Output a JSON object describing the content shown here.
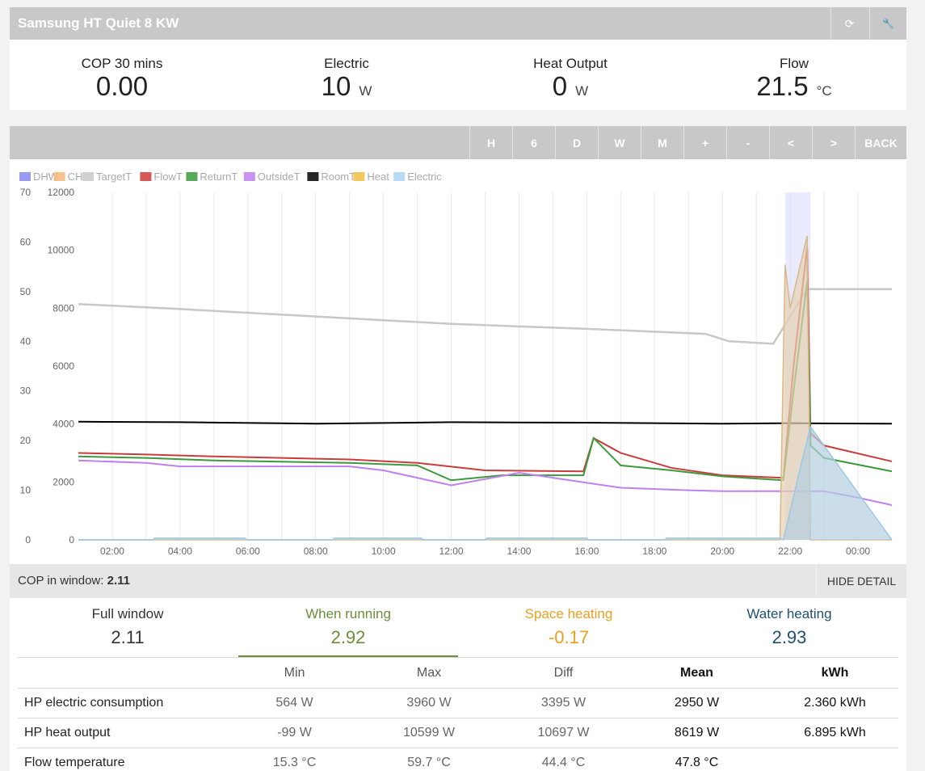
{
  "panel": {
    "title": "Samsung HT Quiet 8 KW",
    "buttons": [
      {
        "icon": "refresh-icon",
        "glyph": "⟳"
      },
      {
        "icon": "wrench-icon",
        "glyph": "🔧"
      }
    ]
  },
  "stats": [
    {
      "label": "COP 30 mins",
      "value": "0.00",
      "unit": ""
    },
    {
      "label": "Electric",
      "value": "10",
      "unit": "W"
    },
    {
      "label": "Heat Output",
      "value": "0",
      "unit": "W"
    },
    {
      "label": "Flow",
      "value": "21.5",
      "unit": "°C"
    }
  ],
  "toolbar": [
    "H",
    "6",
    "D",
    "W",
    "M",
    "+",
    "-",
    "<",
    ">",
    "BACK"
  ],
  "chart_data": {
    "type": "line",
    "legend": [
      {
        "name": "DHW",
        "color": "#8888ee"
      },
      {
        "name": "CH",
        "color": "#f5b97a"
      },
      {
        "name": "TargetT",
        "color": "#c8c8c8"
      },
      {
        "name": "FlowT",
        "color": "#cc3b3b"
      },
      {
        "name": "ReturnT",
        "color": "#3c9a3c"
      },
      {
        "name": "OutsideT",
        "color": "#c080f0"
      },
      {
        "name": "RoomT",
        "color": "#000000"
      },
      {
        "name": "Heat",
        "color": "#f0c040"
      },
      {
        "name": "Electric",
        "color": "#a8d4f0"
      }
    ],
    "y_left_ticks": [
      "70",
      "60",
      "50",
      "40",
      "30",
      "20",
      "10",
      "0"
    ],
    "y_right_ticks": [
      "12000",
      "10000",
      "8000",
      "6000",
      "4000",
      "2000",
      "0"
    ],
    "x_ticks": [
      "02:00",
      "04:00",
      "06:00",
      "08:00",
      "10:00",
      "12:00",
      "14:00",
      "16:00",
      "18:00",
      "20:00",
      "22:00",
      "00:00"
    ],
    "ylim_left": [
      0,
      70
    ],
    "ylim_right": [
      0,
      12000
    ],
    "series": [
      {
        "name": "TargetT",
        "axis": "left",
        "x": [
          1.0,
          4.0,
          8.0,
          12.0,
          16.0,
          19.5,
          20.2,
          21.5,
          22.5,
          23.0,
          25.0
        ],
        "values": [
          47.5,
          46.5,
          45.0,
          43.5,
          42.5,
          41.5,
          40.0,
          39.5,
          50.5,
          50.5,
          50.5
        ]
      },
      {
        "name": "RoomT",
        "axis": "left",
        "x": [
          1.0,
          4.0,
          8.0,
          12.0,
          16.0,
          20.0,
          22.0,
          25.0
        ],
        "values": [
          23.8,
          23.7,
          23.4,
          23.7,
          23.6,
          23.4,
          23.5,
          23.4
        ]
      },
      {
        "name": "FlowT",
        "axis": "left",
        "x": [
          1.0,
          3.0,
          5.0,
          9.0,
          11.0,
          13.0,
          15.9,
          16.2,
          17.0,
          18.5,
          20.0,
          21.8,
          22.1,
          22.5,
          22.6,
          23.0,
          25.0
        ],
        "values": [
          17.5,
          17.2,
          16.8,
          16.2,
          15.5,
          14.0,
          13.8,
          20.5,
          17.5,
          14.5,
          13.0,
          12.5,
          35.0,
          59.0,
          21.5,
          19.0,
          15.8
        ]
      },
      {
        "name": "ReturnT",
        "axis": "left",
        "x": [
          1.0,
          3.0,
          5.0,
          9.0,
          11.0,
          12.0,
          13.5,
          15.9,
          16.2,
          17.0,
          18.5,
          20.0,
          21.8,
          22.1,
          22.5,
          22.6,
          23.0,
          25.0
        ],
        "values": [
          16.8,
          16.5,
          16.0,
          15.5,
          15.0,
          12.0,
          13.0,
          13.0,
          20.5,
          15.0,
          14.0,
          12.8,
          12.0,
          30.0,
          52.0,
          19.0,
          16.5,
          13.8
        ]
      },
      {
        "name": "OutsideT",
        "axis": "left",
        "x": [
          1.0,
          3.0,
          4.0,
          9.0,
          10.0,
          12.0,
          14.0,
          15.5,
          17.0,
          19.0,
          20.0,
          22.0,
          23.0,
          24.0,
          25.0
        ],
        "values": [
          16.0,
          15.5,
          14.8,
          14.8,
          14.0,
          11.0,
          13.5,
          12.0,
          10.5,
          10.0,
          9.8,
          9.8,
          9.8,
          8.5,
          7.0
        ]
      },
      {
        "name": "Heat",
        "axis": "right",
        "x": [
          1.0,
          21.7,
          21.85,
          22.0,
          22.3,
          22.5,
          22.6,
          25.0
        ],
        "values": [
          0,
          0,
          9500,
          8000,
          9500,
          10500,
          0,
          0
        ]
      },
      {
        "name": "Electric",
        "axis": "right",
        "x": [
          1.0,
          3.2,
          3.25,
          5.9,
          6.0,
          8.5,
          8.55,
          11.1,
          11.2,
          13.0,
          13.05,
          16.0,
          16.05,
          18.3,
          18.35,
          21.7,
          21.8,
          22.3,
          22.6,
          25.0
        ],
        "values": [
          0,
          0,
          60,
          60,
          0,
          0,
          60,
          60,
          0,
          0,
          60,
          60,
          0,
          0,
          60,
          60,
          0,
          2500,
          3900,
          0
        ]
      }
    ]
  },
  "cop": {
    "label": "COP in window:",
    "value": "2.11",
    "hide_label": "HIDE DETAIL"
  },
  "tabs": [
    {
      "label": "Full window",
      "value": "2.11",
      "color": "#333333"
    },
    {
      "label": "When running",
      "value": "2.92",
      "color": "#6b8e3a"
    },
    {
      "label": "Space heating",
      "value": "-0.17",
      "color": "#e8a020"
    },
    {
      "label": "Water heating",
      "value": "2.93",
      "color": "#1e5070"
    }
  ],
  "table": {
    "headers": [
      "",
      "Min",
      "Max",
      "Diff",
      "Mean",
      "kWh"
    ],
    "rows": [
      [
        "HP electric consumption",
        "564 W",
        "3960 W",
        "3395 W",
        "2950 W",
        "2.360 kWh"
      ],
      [
        "HP heat output",
        "-99 W",
        "10599 W",
        "10697 W",
        "8619 W",
        "6.895 kWh"
      ],
      [
        "Flow temperature",
        "15.3 °C",
        "59.7 °C",
        "44.4 °C",
        "47.8 °C",
        ""
      ]
    ]
  }
}
